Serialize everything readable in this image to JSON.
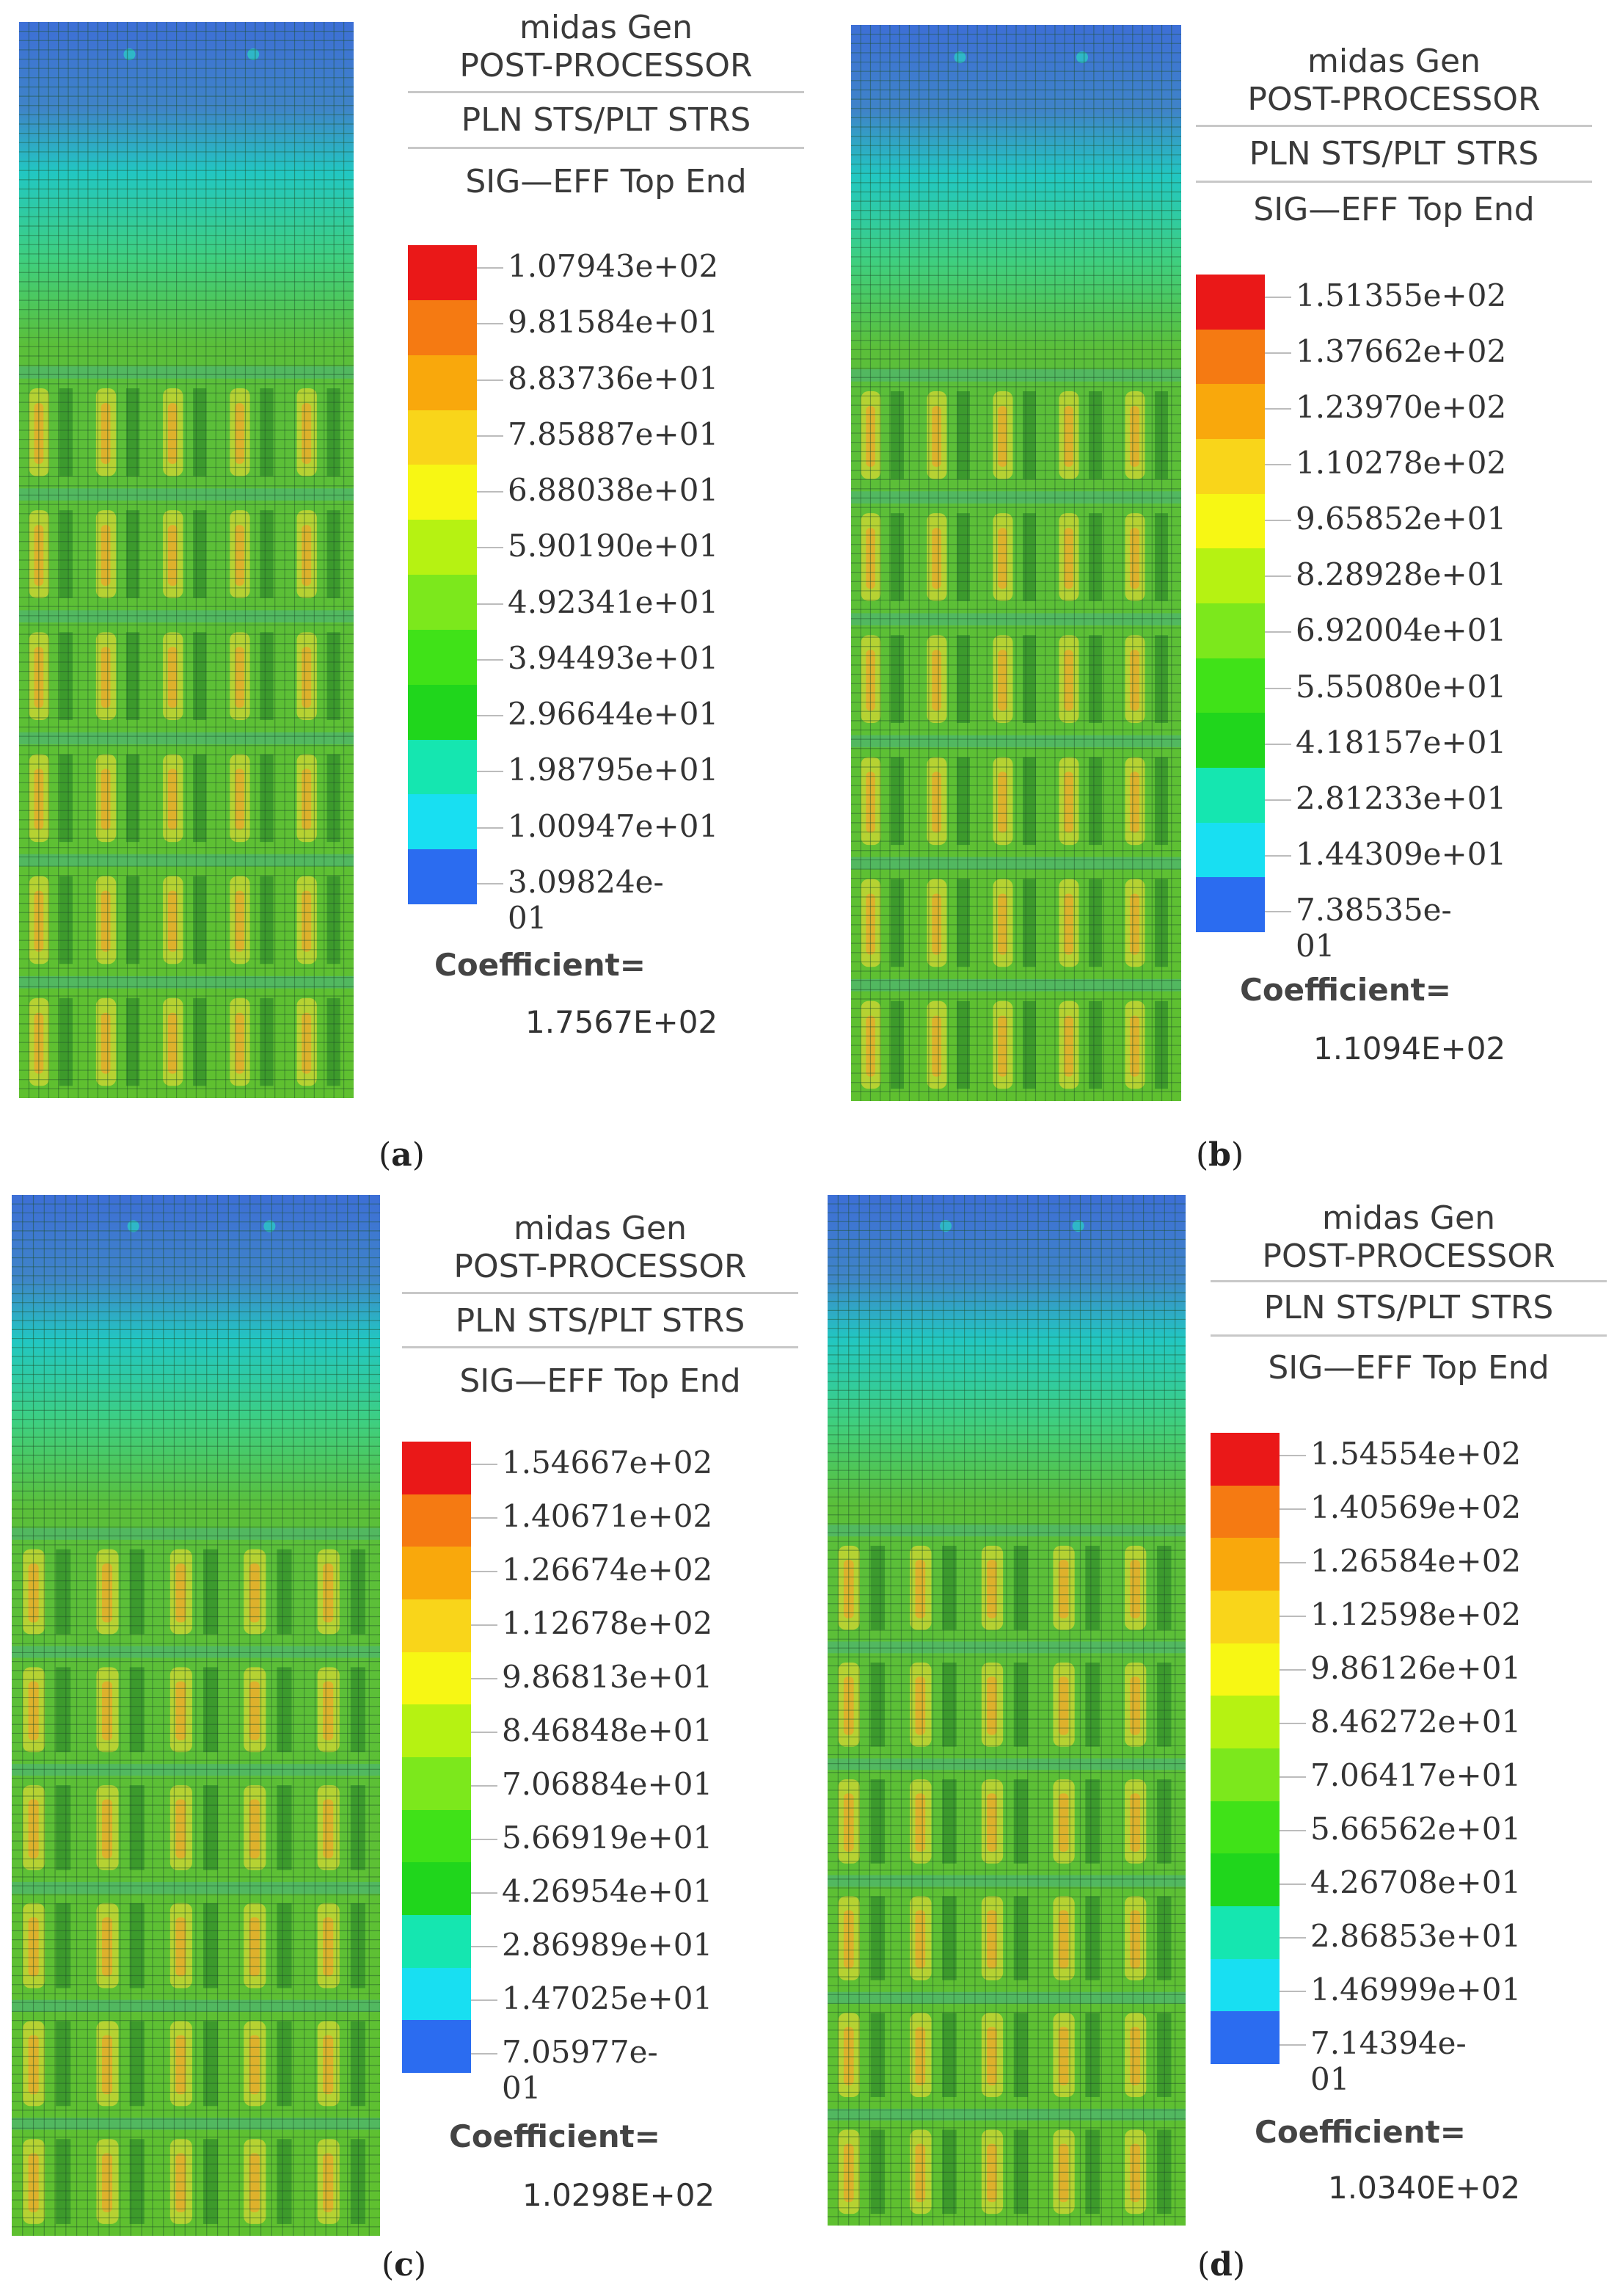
{
  "palette": [
    "#2b6cf0",
    "#18dff2",
    "#15e6b0",
    "#20d61c",
    "#40e218",
    "#7ce81c",
    "#b6f212",
    "#f7f714",
    "#f9d51a",
    "#f9a80c",
    "#f57a12",
    "#ea1818"
  ],
  "panels": [
    {
      "id": "a",
      "app": "midas Gen",
      "processor": "POST-PROCESSOR",
      "result_type": "PLN STS/PLT STRS",
      "component": "SIG—EFF Top End",
      "legend_values": [
        "1.07943e+02",
        "9.81584e+01",
        "8.83736e+01",
        "7.85887e+01",
        "6.88038e+01",
        "5.90190e+01",
        "4.92341e+01",
        "3.94493e+01",
        "2.96644e+01",
        "1.98795e+01",
        "1.00947e+01",
        "3.09824e-01"
      ],
      "coefficient_label": "Coefficient=",
      "coefficient_value": "1.7567E+02",
      "caption_open": "(",
      "caption_letter": "a",
      "caption_close": ")"
    },
    {
      "id": "b",
      "app": "midas Gen",
      "processor": "POST-PROCESSOR",
      "result_type": "PLN STS/PLT STRS",
      "component": "SIG—EFF Top End",
      "legend_values": [
        "1.51355e+02",
        "1.37662e+02",
        "1.23970e+02",
        "1.10278e+02",
        "9.65852e+01",
        "8.28928e+01",
        "6.92004e+01",
        "5.55080e+01",
        "4.18157e+01",
        "2.81233e+01",
        "1.44309e+01",
        "7.38535e-01"
      ],
      "coefficient_label": "Coefficient=",
      "coefficient_value": "1.1094E+02",
      "caption_open": "(",
      "caption_letter": "b",
      "caption_close": ")"
    },
    {
      "id": "c",
      "app": "midas Gen",
      "processor": "POST-PROCESSOR",
      "result_type": "PLN STS/PLT STRS",
      "component": "SIG—EFF Top End",
      "legend_values": [
        "1.54667e+02",
        "1.40671e+02",
        "1.26674e+02",
        "1.12678e+02",
        "9.86813e+01",
        "8.46848e+01",
        "7.06884e+01",
        "5.66919e+01",
        "4.26954e+01",
        "2.86989e+01",
        "1.47025e+01",
        "7.05977e-01"
      ],
      "coefficient_label": "Coefficient=",
      "coefficient_value": "1.0298E+02",
      "caption_open": "(",
      "caption_letter": "c",
      "caption_close": ")"
    },
    {
      "id": "d",
      "app": "midas Gen",
      "processor": "POST-PROCESSOR",
      "result_type": "PLN STS/PLT STRS",
      "component": "SIG—EFF Top End",
      "legend_values": [
        "1.54554e+02",
        "1.40569e+02",
        "1.26584e+02",
        "1.12598e+02",
        "9.86126e+01",
        "8.46272e+01",
        "7.06417e+01",
        "5.66562e+01",
        "4.26708e+01",
        "2.86853e+01",
        "1.46999e+01",
        "7.14394e-01"
      ],
      "coefficient_label": "Coefficient=",
      "coefficient_value": "1.0340E+02",
      "caption_open": "(",
      "caption_letter": "d",
      "caption_close": ")"
    }
  ]
}
